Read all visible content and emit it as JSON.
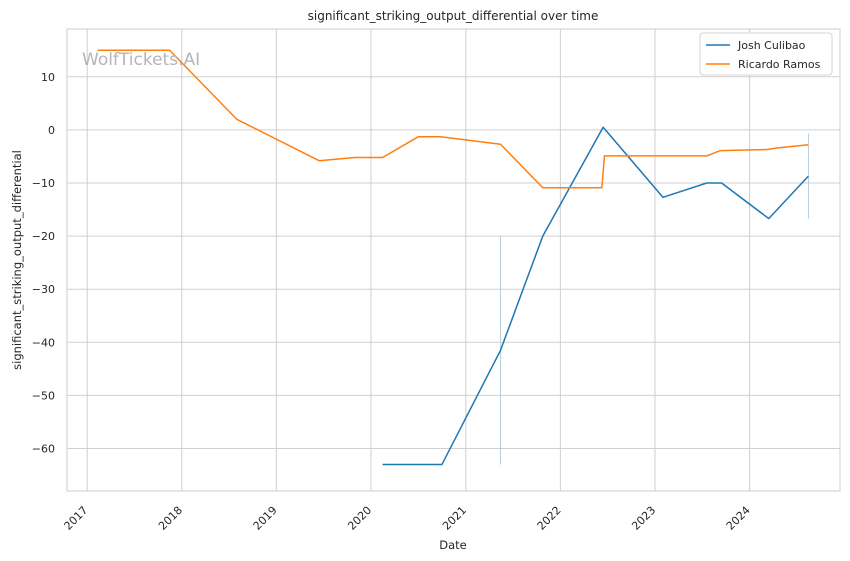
{
  "watermark": "WolfTickets.AI",
  "colors": {
    "josh": "#1f77b4",
    "ricardo": "#ff7f0e",
    "grid": "#d0d0d0",
    "frame": "#cccccc",
    "range": "#aac4d6"
  },
  "chart_data": {
    "type": "line",
    "title": "significant_striking_output_differential over time",
    "xlabel": "Date",
    "ylabel": "significant_striking_output_differential",
    "x_type": "date",
    "xlim": [
      "2016-10-15",
      "2024-12-15"
    ],
    "ylim": [
      -68,
      19
    ],
    "x_ticks": [
      "2017",
      "2018",
      "2019",
      "2020",
      "2021",
      "2022",
      "2023",
      "2024"
    ],
    "y_ticks": [
      10,
      0,
      -10,
      -20,
      -30,
      -40,
      -50,
      -60
    ],
    "y_tick_labels": [
      "10",
      "0",
      "−10",
      "−20",
      "−30",
      "−40",
      "−50",
      "−60"
    ],
    "grid": true,
    "legend_position": "top-right",
    "series": [
      {
        "name": "Josh Culibao",
        "color_key": "josh",
        "points": [
          [
            "2020-02-15",
            -63.0
          ],
          [
            "2020-10-01",
            -63.0
          ],
          [
            "2021-05-15",
            -41.5
          ],
          [
            "2021-10-25",
            -20.0
          ],
          [
            "2022-06-15",
            0.5
          ],
          [
            "2023-02-01",
            -12.7
          ],
          [
            "2023-07-20",
            -10.0
          ],
          [
            "2023-09-15",
            -10.0
          ],
          [
            "2024-03-15",
            -16.7
          ],
          [
            "2024-08-15",
            -8.7
          ]
        ]
      },
      {
        "name": "Ricardo Ramos",
        "color_key": "ricardo",
        "points": [
          [
            "2017-02-10",
            15.0
          ],
          [
            "2017-11-15",
            15.0
          ],
          [
            "2018-08-01",
            2.0
          ],
          [
            "2019-06-15",
            -5.8
          ],
          [
            "2019-10-30",
            -5.2
          ],
          [
            "2020-02-15",
            -5.2
          ],
          [
            "2020-07-01",
            -1.3
          ],
          [
            "2020-09-25",
            -1.3
          ],
          [
            "2021-05-15",
            -2.7
          ],
          [
            "2021-10-25",
            -10.9
          ],
          [
            "2022-06-10",
            -10.9
          ],
          [
            "2022-06-20",
            -4.9
          ],
          [
            "2023-07-20",
            -4.9
          ],
          [
            "2023-09-10",
            -3.9
          ],
          [
            "2024-03-10",
            -3.7
          ],
          [
            "2024-04-15",
            -3.4
          ],
          [
            "2024-08-15",
            -2.8
          ]
        ]
      }
    ],
    "ranges": [
      {
        "x": "2021-05-15",
        "y_min": -63.0,
        "y_max": -20.0
      },
      {
        "x": "2024-08-15",
        "y_min": -16.7,
        "y_max": -0.7
      }
    ]
  }
}
